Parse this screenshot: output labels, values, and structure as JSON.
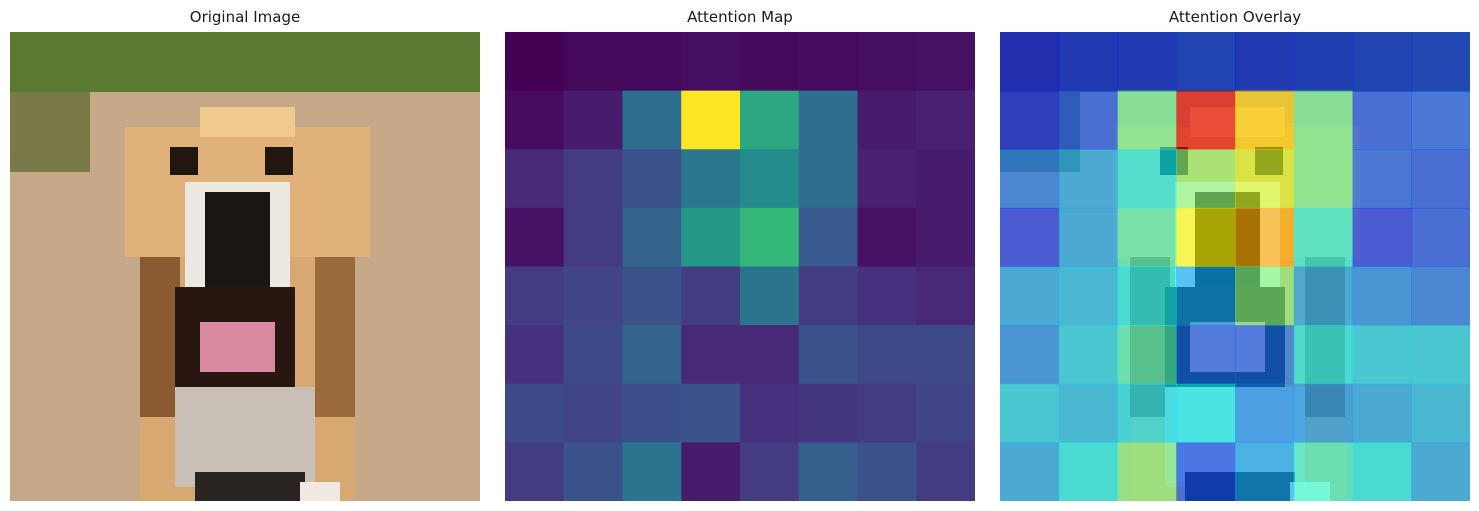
{
  "panels": [
    {
      "id": "original",
      "title": "Original Image"
    },
    {
      "id": "attention-map",
      "title": "Attention Map"
    },
    {
      "id": "overlay",
      "title": "Attention Overlay"
    }
  ],
  "attention": {
    "colormap": "viridis",
    "rows": 8,
    "cols": 8,
    "values": [
      [
        0.0,
        0.03,
        0.03,
        0.05,
        0.03,
        0.04,
        0.05,
        0.06
      ],
      [
        0.04,
        0.1,
        0.45,
        1.0,
        0.7,
        0.45,
        0.1,
        0.12
      ],
      [
        0.15,
        0.22,
        0.32,
        0.5,
        0.6,
        0.45,
        0.12,
        0.1
      ],
      [
        0.06,
        0.22,
        0.4,
        0.65,
        0.75,
        0.35,
        0.06,
        0.1
      ],
      [
        0.22,
        0.25,
        0.32,
        0.22,
        0.48,
        0.22,
        0.18,
        0.15
      ],
      [
        0.18,
        0.28,
        0.4,
        0.15,
        0.15,
        0.32,
        0.28,
        0.28
      ],
      [
        0.28,
        0.25,
        0.3,
        0.32,
        0.18,
        0.2,
        0.22,
        0.25
      ],
      [
        0.22,
        0.32,
        0.48,
        0.1,
        0.22,
        0.38,
        0.32,
        0.22
      ]
    ]
  },
  "colors": {
    "background": "#c4a888",
    "grass": "#5a7a32",
    "fur": "#e0b27a",
    "fur_light": "#f0c890",
    "fur_dark": "#8a5a30",
    "white": "#ece8e2",
    "nose": "#1a1612",
    "mouth": "#2a1610",
    "tongue": "#d98aa0",
    "jet_low": "#3a2aa0",
    "jet_high": "#c85030"
  }
}
